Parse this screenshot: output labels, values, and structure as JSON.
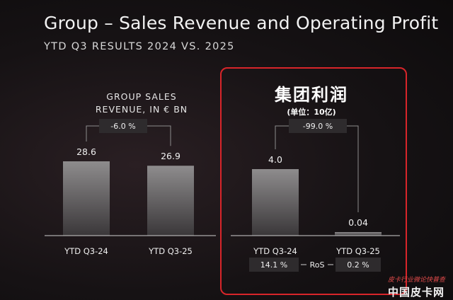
{
  "header": {
    "title": "Group – Sales Revenue and Operating Profit",
    "subtitle": "YTD Q3 RESULTS 2024 VS. 2025"
  },
  "overlay": {
    "zh_title": "集团利润",
    "zh_unit": "(单位：10亿)"
  },
  "watermark": {
    "line1": "皮卡行业微论快普查",
    "line2": "中国皮卡网"
  },
  "colors": {
    "bar_start": "#3a3739",
    "bar_end": "#8e8c8d",
    "highlight_border": "#d8252a"
  },
  "chart_data": [
    {
      "type": "bar",
      "title_lines": [
        "GROUP SALES",
        "REVENUE, IN € BN"
      ],
      "categories": [
        "YTD Q3-24",
        "YTD Q3-25"
      ],
      "values": [
        28.6,
        26.9
      ],
      "value_labels": [
        "28.6",
        "26.9"
      ],
      "change_label": "-6.0 %",
      "grid": false
    },
    {
      "type": "bar",
      "title_lines": [],
      "categories": [
        "YTD Q3-24",
        "YTD Q3-25"
      ],
      "values": [
        4.0,
        0.04
      ],
      "value_labels": [
        "4.0",
        "0.04"
      ],
      "change_label": "-99.0 %",
      "ros": {
        "label": "RoS",
        "values": [
          "14.1 %",
          "0.2 %"
        ]
      },
      "grid": false
    }
  ]
}
